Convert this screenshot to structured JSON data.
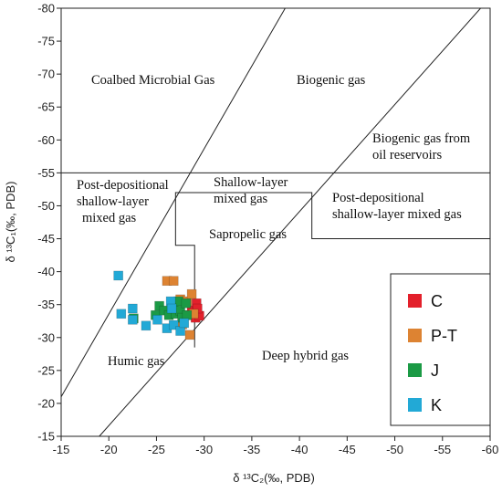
{
  "chart_data": {
    "type": "scatter",
    "xlabel": "δ ¹³C₂(‰, PDB)",
    "ylabel": "δ ¹³C₁(‰, PDB)",
    "xlim": [
      -15,
      -60
    ],
    "ylim": [
      -15,
      -80
    ],
    "xticks": [
      -15,
      -20,
      -25,
      -30,
      -35,
      -40,
      -45,
      -50,
      -55,
      -60
    ],
    "yticks": [
      -15,
      -20,
      -25,
      -30,
      -35,
      -40,
      -45,
      -50,
      -55,
      -60,
      -65,
      -70,
      -75,
      -80
    ],
    "boundary_lines": [
      {
        "x": [
          -15,
          -38.5
        ],
        "y": [
          -21,
          -80
        ]
      },
      {
        "x": [
          -19,
          -59
        ],
        "y": [
          -15,
          -80
        ]
      },
      {
        "x": [
          -15,
          -60
        ],
        "y": [
          -55,
          -55
        ]
      },
      {
        "x": [
          -60,
          -41.3,
          -41.3,
          -27,
          -27,
          -29,
          -29
        ],
        "y": [
          -45,
          -45,
          -52,
          -52,
          -44,
          -44,
          -28.5
        ]
      }
    ],
    "annotations": [
      {
        "lines": [
          "Coalbed Microbial Gas"
        ]
      },
      {
        "lines": [
          "Biogenic gas"
        ]
      },
      {
        "lines": [
          "Biogenic gas from",
          "oil reservoirs"
        ]
      },
      {
        "lines": [
          "Post-depositional",
          "shallow-layer",
          "mixed gas"
        ]
      },
      {
        "lines": [
          "Shallow-layer",
          "mixed gas"
        ]
      },
      {
        "lines": [
          "Post-depositional",
          "shallow-layer mixed gas"
        ]
      },
      {
        "lines": [
          "Sapropelic gas"
        ]
      },
      {
        "lines": [
          "Humic gas"
        ]
      },
      {
        "lines": [
          "Deep hybrid gas"
        ]
      }
    ],
    "series": [
      {
        "name": "C",
        "color": "#e3202b",
        "x": [
          -28.2,
          -28.7,
          -29.2,
          -29.1,
          -29.5,
          -29.3
        ],
        "values": [
          -33.4,
          -34.1,
          -35.2,
          -33.0,
          -33.3,
          -34.4
        ]
      },
      {
        "name": "P-T",
        "color": "#dd8332",
        "x": [
          -26.1,
          -26.8,
          -27.5,
          -28.2,
          -28.7,
          -28.5,
          -28.9,
          -27.7
        ],
        "values": [
          -38.6,
          -38.6,
          -35.8,
          -35.5,
          -36.6,
          -30.4,
          -33.6,
          -32.0
        ]
      },
      {
        "name": "J",
        "color": "#1b9a45",
        "x": [
          -22.6,
          -24.9,
          -25.3,
          -25.8,
          -26.3,
          -26.8,
          -27.0,
          -27.3,
          -27.5,
          -27.7,
          -28.1,
          -28.2
        ],
        "values": [
          -32.9,
          -33.4,
          -34.8,
          -34.1,
          -33.4,
          -34.7,
          -33.6,
          -35.5,
          -34.1,
          -33.0,
          -35.2,
          -33.4
        ]
      },
      {
        "name": "K",
        "color": "#22a9d6",
        "x": [
          -21.0,
          -21.3,
          -22.5,
          -22.5,
          -23.9,
          -25.1,
          -26.1,
          -26.5,
          -26.6,
          -26.8,
          -27.5,
          -27.9
        ],
        "values": [
          -39.4,
          -33.6,
          -34.4,
          -32.7,
          -31.8,
          -32.7,
          -31.4,
          -35.5,
          -34.4,
          -31.9,
          -31.0,
          -32.2
        ]
      }
    ]
  }
}
